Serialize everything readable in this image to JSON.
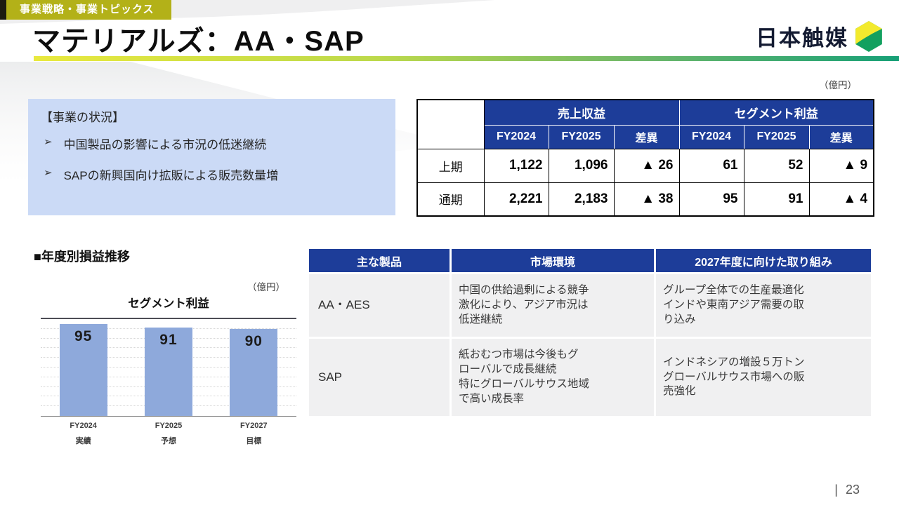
{
  "page": {
    "tag": "事業戦略・事業トピックス",
    "title": "マテリアルズ：AA・SAP",
    "logo_text": "日本触媒",
    "page_separator": "|",
    "page_number": "23"
  },
  "unit_label": "（億円）",
  "status_box": {
    "title": "【事業の状況】",
    "bullet_icon": "➢",
    "bullets": [
      "中国製品の影響による市況の低迷継続",
      "SAPの新興国向け拡販による販売数量増"
    ]
  },
  "results_table": {
    "group_headers": [
      "売上収益",
      "セグメント利益"
    ],
    "sub_headers": [
      "FY2024",
      "FY2025",
      "差異"
    ],
    "rows": [
      {
        "label": "上期",
        "values": [
          "1,122",
          "1,096",
          "▲ 26",
          "61",
          "52",
          "▲ 9"
        ]
      },
      {
        "label": "通期",
        "values": [
          "2,221",
          "2,183",
          "▲ 38",
          "95",
          "91",
          "▲ 4"
        ]
      }
    ]
  },
  "chart_section": {
    "heading": "■年度別損益推移"
  },
  "chart_data": {
    "type": "bar",
    "title": "セグメント利益",
    "unit": "（億円）",
    "categories": [
      "FY2024",
      "FY2025",
      "FY2027"
    ],
    "category_sublabels": [
      "実績",
      "予想",
      "目標"
    ],
    "values": [
      95,
      91,
      90
    ],
    "ylim": [
      0,
      100
    ],
    "gridline_step": 10,
    "grid": "dotted",
    "legend": "none",
    "bar_color": "#8EA9DB"
  },
  "products_table": {
    "headers": [
      "主な製品",
      "市場環境",
      "2027年度に向けた取り組み"
    ],
    "rows": [
      {
        "product": "AA・AES",
        "market": "中国の供給過剰による競争\n激化により、アジア市況は\n低迷継続",
        "initiatives": "グループ全体での生産最適化\nインドや東南アジア需要の取\nり込み"
      },
      {
        "product": "SAP",
        "market": "紙おむつ市場は今後もグ\nローバルで成長継続\n特にグローバルサウス地域\nで高い成長率",
        "initiatives": "インドネシアの増設５万トン\nグローバルサウス市場への販\n売強化"
      }
    ]
  },
  "colors": {
    "accent_blue": "#1D3D99",
    "tag_olive": "#B3B118",
    "status_box_blue": "#CBDAF6",
    "bar_blue": "#8EA9DB",
    "rule_gradient_left": "#E9E93E",
    "rule_gradient_right": "#17A077",
    "logo_green": "#12A05F",
    "logo_yellow": "#F3EA2D"
  }
}
